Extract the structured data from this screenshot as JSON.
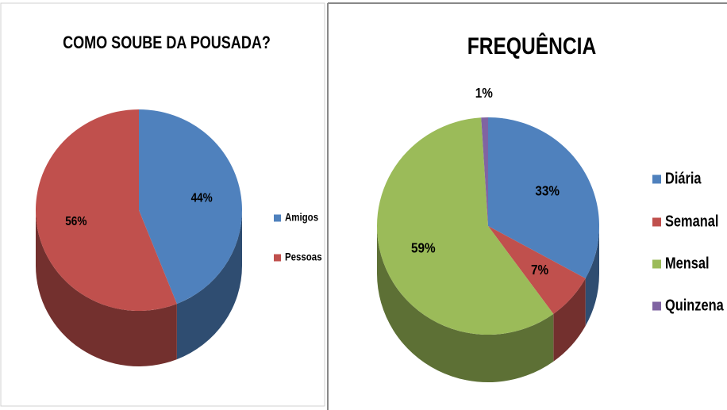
{
  "chart_data": [
    {
      "type": "pie",
      "title": "COMO SOUBE DA POUSADA?",
      "categories": [
        "Amigos",
        "Pessoas"
      ],
      "values": [
        44,
        56
      ],
      "value_labels": [
        "44%",
        "56%"
      ],
      "colors": [
        "#4f81bd",
        "#c0504d"
      ],
      "legend": "right"
    },
    {
      "type": "pie",
      "title": "FREQUÊNCIA",
      "categories": [
        "Diária",
        "Semanal",
        "Mensal",
        "Quinzena"
      ],
      "values": [
        33,
        7,
        59,
        1
      ],
      "value_labels": [
        "33%",
        "7%",
        "59%",
        "1%"
      ],
      "colors": [
        "#4f81bd",
        "#c0504d",
        "#9bbb59",
        "#8064a2"
      ],
      "legend": "right"
    }
  ]
}
